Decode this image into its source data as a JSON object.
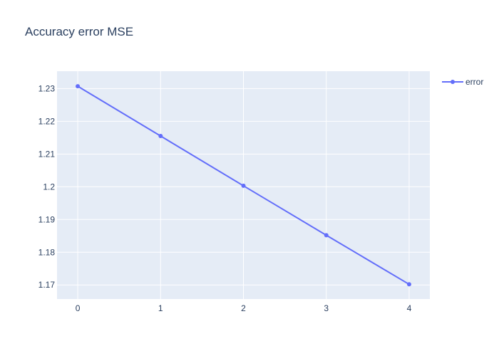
{
  "chart_data": {
    "type": "line",
    "title": "Accuracy error MSE",
    "xlabel": "",
    "ylabel": "",
    "x": [
      0,
      1,
      2,
      3,
      4
    ],
    "x_ticks": [
      "0",
      "1",
      "2",
      "3",
      "4"
    ],
    "y_ticks": [
      "1.17",
      "1.18",
      "1.19",
      "1.2",
      "1.21",
      "1.22",
      "1.23"
    ],
    "xlim": [
      -0.25,
      4.25
    ],
    "ylim": [
      1.1657,
      1.2353
    ],
    "grid": true,
    "legend_position": "top-right",
    "series": [
      {
        "name": "error",
        "values": [
          1.2307,
          1.2155,
          1.2003,
          1.1852,
          1.1702
        ],
        "color": "#636efa",
        "mode": "lines+markers"
      }
    ]
  },
  "colors": {
    "plot_background": "#e5ecf6",
    "grid": "#ffffff",
    "text": "#2a3f5f"
  }
}
